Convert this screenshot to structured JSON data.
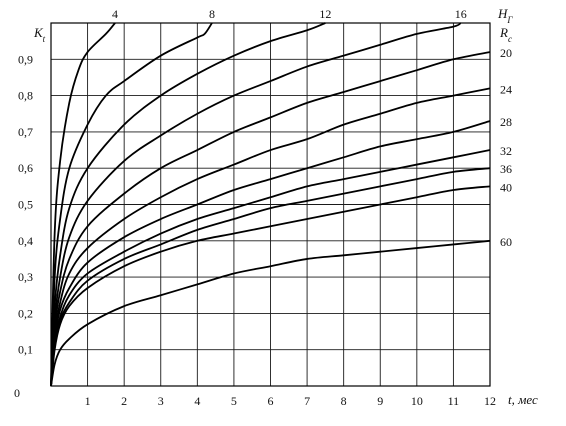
{
  "chart_data": {
    "type": "line",
    "title": "",
    "xlabel": "t, мес",
    "ylabel": "K_t",
    "right_header": {
      "top": "H_Г",
      "bottom": "R_c"
    },
    "xlim": [
      0,
      12
    ],
    "ylim": [
      0,
      1.0
    ],
    "x_ticks": [
      "0",
      "1",
      "2",
      "3",
      "4",
      "5",
      "6",
      "7",
      "8",
      "9",
      "10",
      "11",
      "12"
    ],
    "y_ticks": [
      "0",
      "0,1",
      "0,2",
      "0,3",
      "0,4",
      "0,5",
      "0,6",
      "0,7",
      "0,8",
      "0,9"
    ],
    "grid": true,
    "series": [
      {
        "name": "4",
        "label_position": "top",
        "points": [
          [
            0,
            0
          ],
          [
            0.1,
            0.42
          ],
          [
            0.25,
            0.62
          ],
          [
            0.5,
            0.78
          ],
          [
            0.75,
            0.87
          ],
          [
            1,
            0.92
          ],
          [
            1.5,
            0.97
          ],
          [
            1.75,
            1.0
          ]
        ]
      },
      {
        "name": "8",
        "label_position": "top",
        "points": [
          [
            0,
            0
          ],
          [
            0.1,
            0.3
          ],
          [
            0.25,
            0.46
          ],
          [
            0.5,
            0.6
          ],
          [
            1,
            0.72
          ],
          [
            1.5,
            0.8
          ],
          [
            2,
            0.84
          ],
          [
            3,
            0.91
          ],
          [
            4,
            0.96
          ],
          [
            4.2,
            0.97
          ],
          [
            4.4,
            1.0
          ]
        ]
      },
      {
        "name": "12",
        "label_position": "top",
        "points": [
          [
            0,
            0
          ],
          [
            0.1,
            0.22
          ],
          [
            0.25,
            0.36
          ],
          [
            0.5,
            0.49
          ],
          [
            1,
            0.6
          ],
          [
            2,
            0.72
          ],
          [
            3,
            0.8
          ],
          [
            4,
            0.86
          ],
          [
            5,
            0.91
          ],
          [
            6,
            0.95
          ],
          [
            7,
            0.98
          ],
          [
            7.5,
            1.0
          ]
        ]
      },
      {
        "name": "16",
        "label_position": "top",
        "points": [
          [
            0,
            0
          ],
          [
            0.1,
            0.18
          ],
          [
            0.25,
            0.3
          ],
          [
            0.5,
            0.41
          ],
          [
            1,
            0.51
          ],
          [
            2,
            0.62
          ],
          [
            3,
            0.69
          ],
          [
            4,
            0.75
          ],
          [
            5,
            0.8
          ],
          [
            6,
            0.84
          ],
          [
            7,
            0.88
          ],
          [
            8,
            0.91
          ],
          [
            9,
            0.94
          ],
          [
            10,
            0.97
          ],
          [
            11,
            0.99
          ],
          [
            11.2,
            1.0
          ]
        ]
      },
      {
        "name": "20",
        "label_position": "right",
        "points": [
          [
            0,
            0
          ],
          [
            0.1,
            0.16
          ],
          [
            0.25,
            0.26
          ],
          [
            0.5,
            0.35
          ],
          [
            1,
            0.44
          ],
          [
            2,
            0.53
          ],
          [
            3,
            0.6
          ],
          [
            4,
            0.65
          ],
          [
            5,
            0.7
          ],
          [
            6,
            0.74
          ],
          [
            7,
            0.78
          ],
          [
            8,
            0.81
          ],
          [
            9,
            0.84
          ],
          [
            10,
            0.87
          ],
          [
            11,
            0.9
          ],
          [
            12,
            0.92
          ]
        ]
      },
      {
        "name": "24",
        "label_position": "right",
        "points": [
          [
            0,
            0
          ],
          [
            0.1,
            0.14
          ],
          [
            0.25,
            0.23
          ],
          [
            0.5,
            0.31
          ],
          [
            1,
            0.38
          ],
          [
            2,
            0.46
          ],
          [
            3,
            0.52
          ],
          [
            4,
            0.57
          ],
          [
            5,
            0.61
          ],
          [
            6,
            0.65
          ],
          [
            7,
            0.68
          ],
          [
            8,
            0.72
          ],
          [
            9,
            0.75
          ],
          [
            10,
            0.78
          ],
          [
            11,
            0.8
          ],
          [
            12,
            0.82
          ]
        ]
      },
      {
        "name": "28",
        "label_position": "right",
        "points": [
          [
            0,
            0
          ],
          [
            0.1,
            0.13
          ],
          [
            0.25,
            0.21
          ],
          [
            0.5,
            0.27
          ],
          [
            1,
            0.34
          ],
          [
            2,
            0.41
          ],
          [
            3,
            0.46
          ],
          [
            4,
            0.5
          ],
          [
            5,
            0.54
          ],
          [
            6,
            0.57
          ],
          [
            7,
            0.6
          ],
          [
            8,
            0.63
          ],
          [
            9,
            0.66
          ],
          [
            10,
            0.68
          ],
          [
            11,
            0.7
          ],
          [
            12,
            0.73
          ]
        ]
      },
      {
        "name": "32",
        "label_position": "right",
        "points": [
          [
            0,
            0
          ],
          [
            0.1,
            0.12
          ],
          [
            0.25,
            0.19
          ],
          [
            0.5,
            0.25
          ],
          [
            1,
            0.31
          ],
          [
            2,
            0.37
          ],
          [
            3,
            0.42
          ],
          [
            4,
            0.46
          ],
          [
            5,
            0.49
          ],
          [
            6,
            0.52
          ],
          [
            7,
            0.55
          ],
          [
            8,
            0.57
          ],
          [
            9,
            0.59
          ],
          [
            10,
            0.61
          ],
          [
            11,
            0.63
          ],
          [
            12,
            0.65
          ]
        ]
      },
      {
        "name": "36",
        "label_position": "right",
        "points": [
          [
            0,
            0
          ],
          [
            0.1,
            0.11
          ],
          [
            0.25,
            0.18
          ],
          [
            0.5,
            0.23
          ],
          [
            1,
            0.29
          ],
          [
            2,
            0.35
          ],
          [
            3,
            0.39
          ],
          [
            4,
            0.43
          ],
          [
            5,
            0.46
          ],
          [
            6,
            0.49
          ],
          [
            7,
            0.51
          ],
          [
            8,
            0.53
          ],
          [
            9,
            0.55
          ],
          [
            10,
            0.57
          ],
          [
            11,
            0.59
          ],
          [
            12,
            0.6
          ]
        ]
      },
      {
        "name": "40",
        "label_position": "right",
        "points": [
          [
            0,
            0
          ],
          [
            0.1,
            0.1
          ],
          [
            0.25,
            0.17
          ],
          [
            0.5,
            0.22
          ],
          [
            1,
            0.27
          ],
          [
            2,
            0.33
          ],
          [
            3,
            0.37
          ],
          [
            4,
            0.4
          ],
          [
            5,
            0.42
          ],
          [
            6,
            0.44
          ],
          [
            7,
            0.46
          ],
          [
            8,
            0.48
          ],
          [
            9,
            0.5
          ],
          [
            10,
            0.52
          ],
          [
            11,
            0.54
          ],
          [
            12,
            0.55
          ]
        ]
      },
      {
        "name": "60",
        "label_position": "right",
        "points": [
          [
            0,
            0
          ],
          [
            0.1,
            0.06
          ],
          [
            0.25,
            0.1
          ],
          [
            0.5,
            0.13
          ],
          [
            1,
            0.17
          ],
          [
            2,
            0.22
          ],
          [
            3,
            0.25
          ],
          [
            4,
            0.28
          ],
          [
            5,
            0.31
          ],
          [
            6,
            0.33
          ],
          [
            7,
            0.35
          ],
          [
            8,
            0.36
          ],
          [
            9,
            0.37
          ],
          [
            10,
            0.38
          ],
          [
            11,
            0.39
          ],
          [
            12,
            0.4
          ]
        ]
      }
    ]
  }
}
